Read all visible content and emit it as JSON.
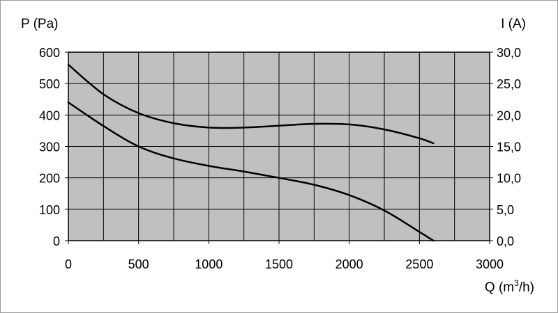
{
  "chart_data": {
    "type": "line",
    "title": "",
    "xlabel": "Q (m³/h)",
    "xlabel_parts": {
      "prefix": "Q (m",
      "sup": "3",
      "suffix": "/h)"
    },
    "ylabel": "P (Pa)",
    "y2label": "I (A)",
    "xlim": [
      0,
      3000
    ],
    "ylim": [
      0,
      600
    ],
    "y2lim": [
      0,
      30
    ],
    "x_ticks": [
      0,
      500,
      1000,
      1500,
      2000,
      2500,
      3000
    ],
    "x_tick_labels": [
      "0",
      "500",
      "1000",
      "1500",
      "2000",
      "2500",
      "3000"
    ],
    "y_ticks": [
      0,
      100,
      200,
      300,
      400,
      500,
      600
    ],
    "y_tick_labels": [
      "0",
      "100",
      "200",
      "300",
      "400",
      "500",
      "600"
    ],
    "y2_ticks": [
      0,
      5,
      10,
      15,
      20,
      25,
      30
    ],
    "y2_tick_labels": [
      "0,0",
      "5,0",
      "10,0",
      "15,0",
      "20,0",
      "25,0",
      "30,0"
    ],
    "grid": true,
    "plot_background": "#c0c0c0",
    "line_color": "#000000",
    "series": [
      {
        "axis": "right",
        "x": [
          0,
          250,
          500,
          750,
          1000,
          1250,
          1500,
          1750,
          2000,
          2250,
          2500,
          2600
        ],
        "values": [
          28.0,
          23.3,
          20.3,
          18.7,
          18.0,
          18.0,
          18.3,
          18.6,
          18.5,
          17.7,
          16.3,
          15.5
        ]
      },
      {
        "axis": "left",
        "x": [
          0,
          250,
          500,
          750,
          1000,
          1250,
          1500,
          1750,
          2000,
          2250,
          2500,
          2600
        ],
        "values": [
          440,
          365,
          300,
          262,
          238,
          220,
          200,
          178,
          145,
          96,
          28,
          0
        ]
      }
    ]
  }
}
